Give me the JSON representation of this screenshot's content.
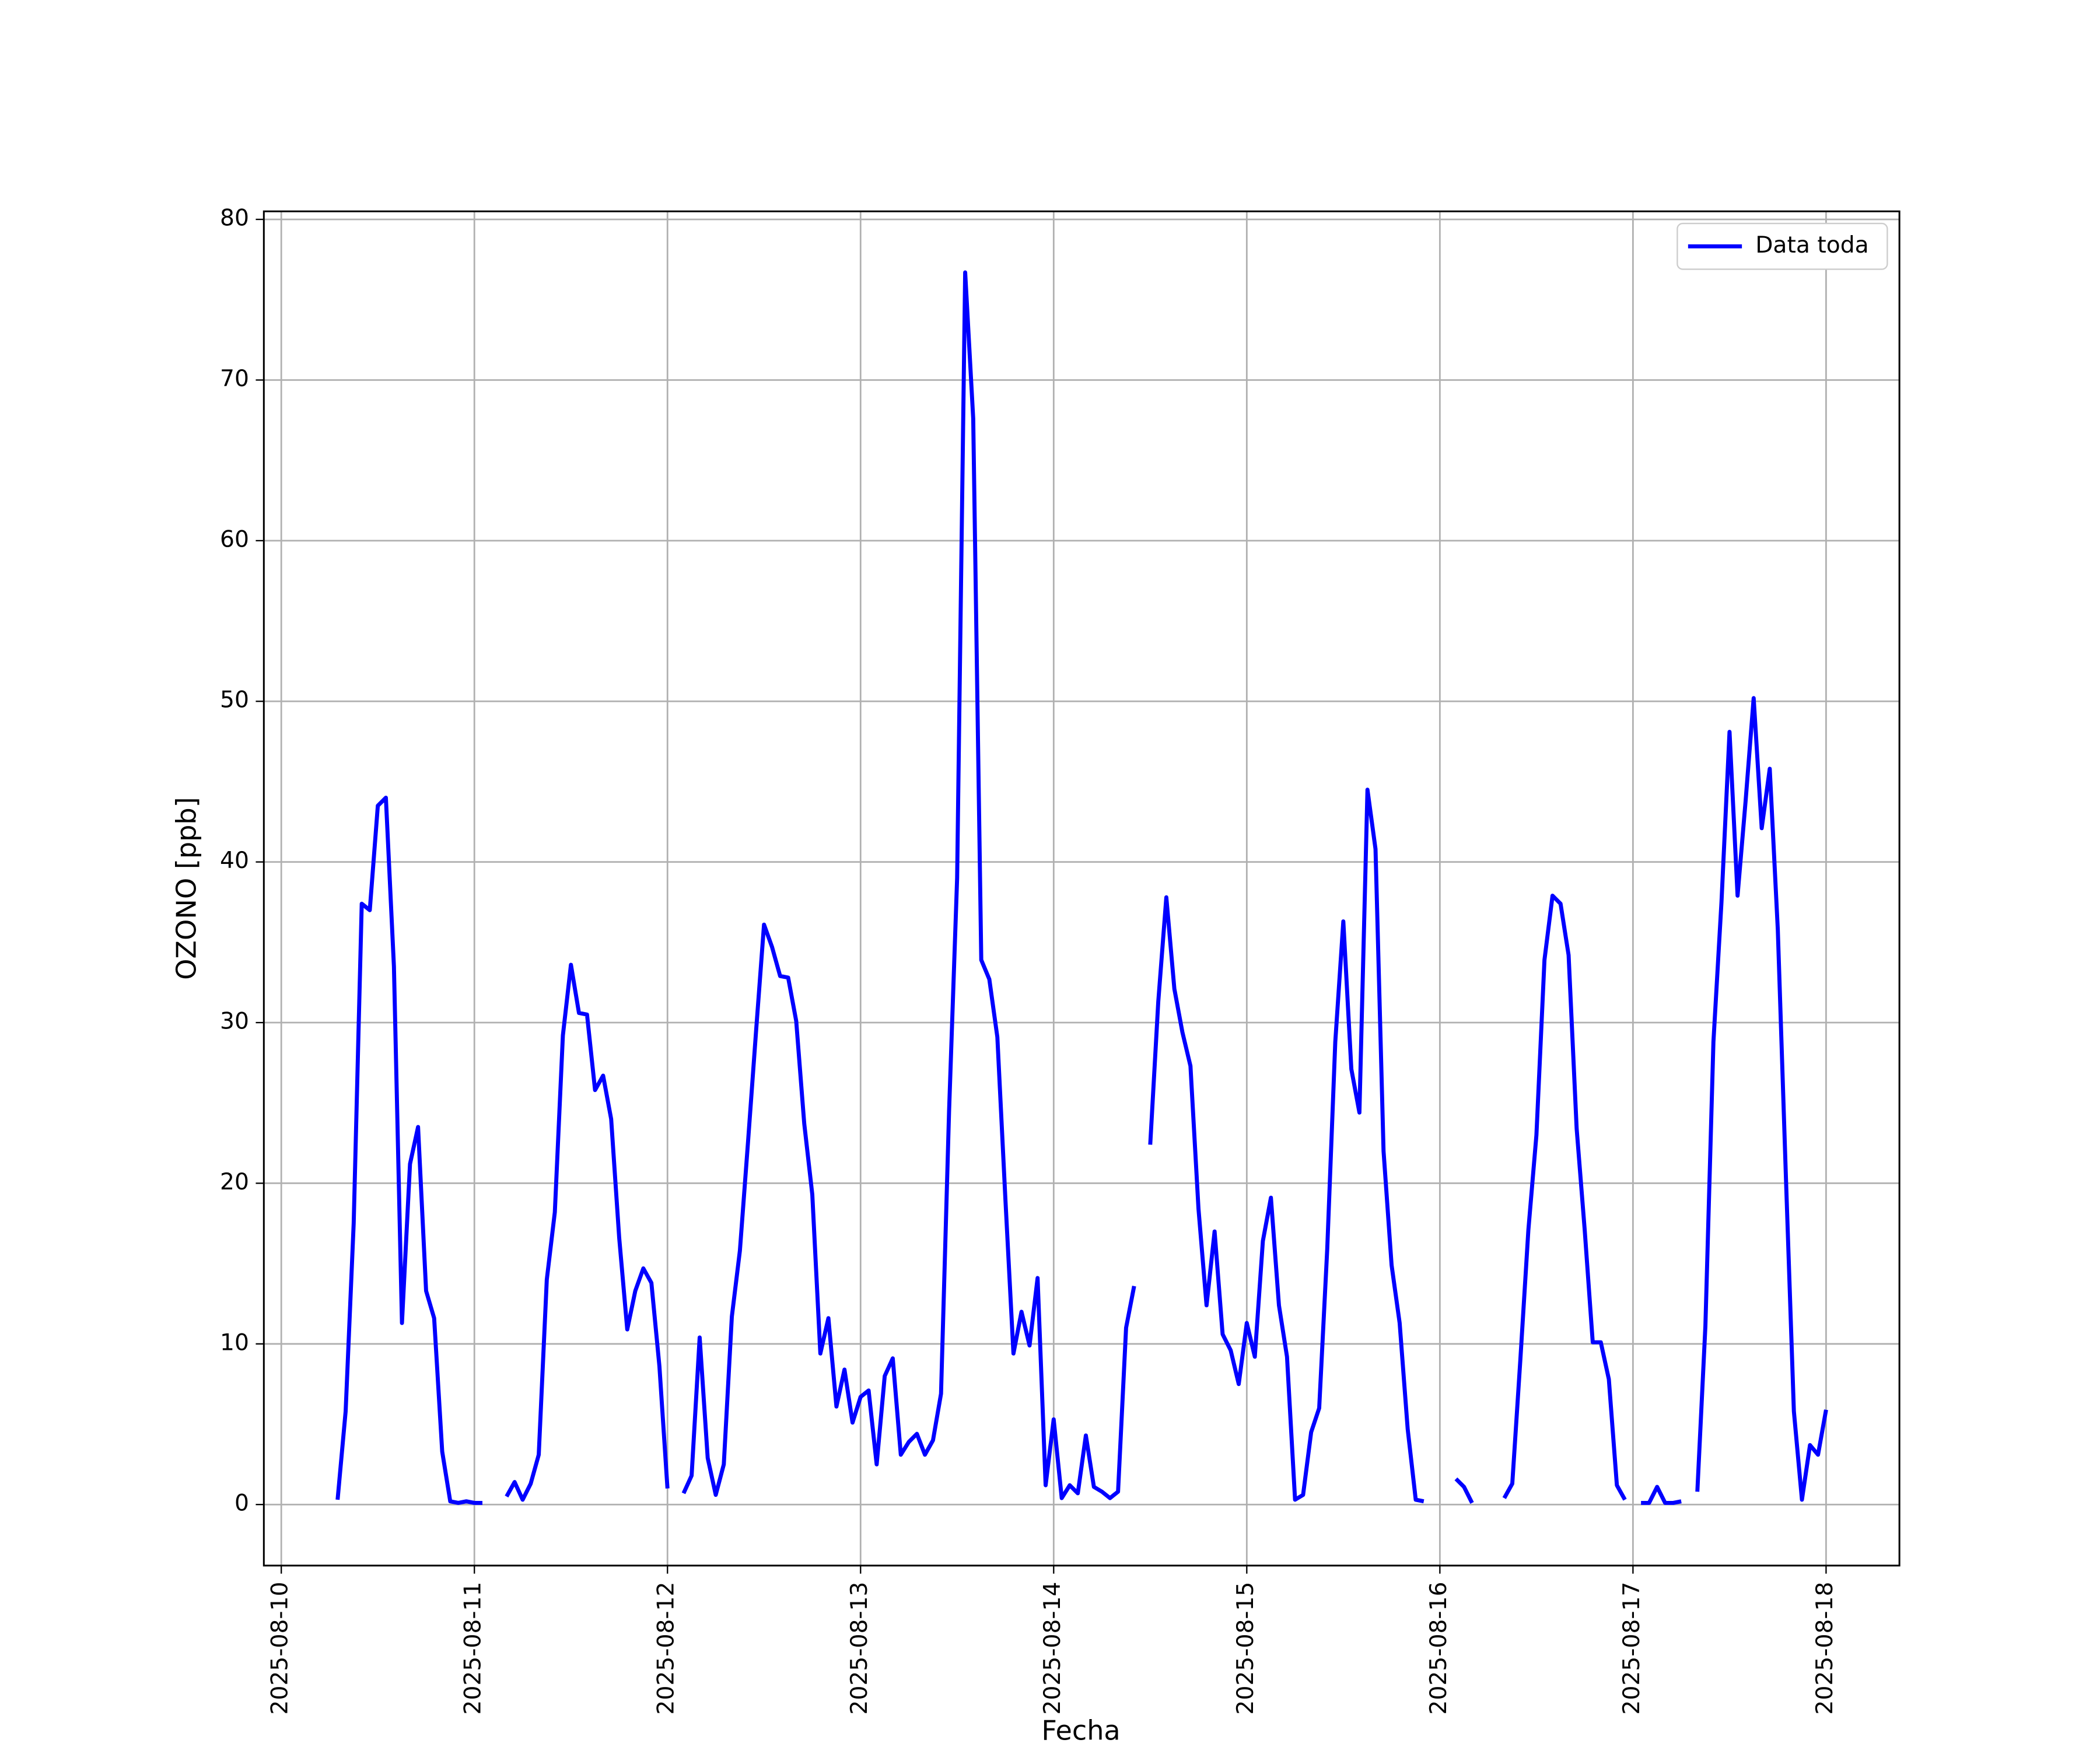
{
  "chart_data": {
    "type": "line",
    "xlabel": "Fecha",
    "ylabel": "OZONO [ppb]",
    "x": [
      "2025-08-10T07:00",
      "2025-08-10T08:00",
      "2025-08-10T09:00",
      "2025-08-10T10:00",
      "2025-08-10T11:00",
      "2025-08-10T12:00",
      "2025-08-10T13:00",
      "2025-08-10T14:00",
      "2025-08-10T15:00",
      "2025-08-10T16:00",
      "2025-08-10T17:00",
      "2025-08-10T18:00",
      "2025-08-10T19:00",
      "2025-08-10T20:00",
      "2025-08-10T21:00",
      "2025-08-10T22:00",
      "2025-08-10T23:00",
      "2025-08-11T00:00",
      "2025-08-11T01:00",
      "2025-08-11T02:00",
      "2025-08-11T03:00",
      "2025-08-11T04:00",
      "2025-08-11T05:00",
      "2025-08-11T06:00",
      "2025-08-11T07:00",
      "2025-08-11T08:00",
      "2025-08-11T09:00",
      "2025-08-11T10:00",
      "2025-08-11T11:00",
      "2025-08-11T12:00",
      "2025-08-11T13:00",
      "2025-08-11T14:00",
      "2025-08-11T15:00",
      "2025-08-11T16:00",
      "2025-08-11T17:00",
      "2025-08-11T18:00",
      "2025-08-11T19:00",
      "2025-08-11T20:00",
      "2025-08-11T21:00",
      "2025-08-11T22:00",
      "2025-08-11T23:00",
      "2025-08-12T00:00",
      "2025-08-12T01:00",
      "2025-08-12T02:00",
      "2025-08-12T03:00",
      "2025-08-12T04:00",
      "2025-08-12T05:00",
      "2025-08-12T06:00",
      "2025-08-12T07:00",
      "2025-08-12T08:00",
      "2025-08-12T09:00",
      "2025-08-12T10:00",
      "2025-08-12T11:00",
      "2025-08-12T12:00",
      "2025-08-12T13:00",
      "2025-08-12T14:00",
      "2025-08-12T15:00",
      "2025-08-12T16:00",
      "2025-08-12T17:00",
      "2025-08-12T18:00",
      "2025-08-12T19:00",
      "2025-08-12T20:00",
      "2025-08-12T21:00",
      "2025-08-12T22:00",
      "2025-08-12T23:00",
      "2025-08-13T00:00",
      "2025-08-13T01:00",
      "2025-08-13T02:00",
      "2025-08-13T03:00",
      "2025-08-13T04:00",
      "2025-08-13T05:00",
      "2025-08-13T06:00",
      "2025-08-13T07:00",
      "2025-08-13T08:00",
      "2025-08-13T09:00",
      "2025-08-13T10:00",
      "2025-08-13T11:00",
      "2025-08-13T12:00",
      "2025-08-13T13:00",
      "2025-08-13T14:00",
      "2025-08-13T15:00",
      "2025-08-13T16:00",
      "2025-08-13T17:00",
      "2025-08-13T18:00",
      "2025-08-13T19:00",
      "2025-08-13T20:00",
      "2025-08-13T21:00",
      "2025-08-13T22:00",
      "2025-08-13T23:00",
      "2025-08-14T00:00",
      "2025-08-14T01:00",
      "2025-08-14T02:00",
      "2025-08-14T03:00",
      "2025-08-14T04:00",
      "2025-08-14T05:00",
      "2025-08-14T06:00",
      "2025-08-14T07:00",
      "2025-08-14T08:00",
      "2025-08-14T09:00",
      "2025-08-14T10:00",
      "2025-08-14T11:00",
      "2025-08-14T12:00",
      "2025-08-14T13:00",
      "2025-08-14T14:00",
      "2025-08-14T15:00",
      "2025-08-14T16:00",
      "2025-08-14T17:00",
      "2025-08-14T18:00",
      "2025-08-14T19:00",
      "2025-08-14T20:00",
      "2025-08-14T21:00",
      "2025-08-14T22:00",
      "2025-08-14T23:00",
      "2025-08-15T00:00",
      "2025-08-15T01:00",
      "2025-08-15T02:00",
      "2025-08-15T03:00",
      "2025-08-15T04:00",
      "2025-08-15T05:00",
      "2025-08-15T06:00",
      "2025-08-15T07:00",
      "2025-08-15T08:00",
      "2025-08-15T09:00",
      "2025-08-15T10:00",
      "2025-08-15T11:00",
      "2025-08-15T12:00",
      "2025-08-15T13:00",
      "2025-08-15T14:00",
      "2025-08-15T15:00",
      "2025-08-15T16:00",
      "2025-08-15T17:00",
      "2025-08-15T18:00",
      "2025-08-15T19:00",
      "2025-08-15T20:00",
      "2025-08-15T21:00",
      "2025-08-15T22:00",
      "2025-08-15T23:00",
      "2025-08-16T00:00",
      "2025-08-16T01:00",
      "2025-08-16T02:00",
      "2025-08-16T03:00",
      "2025-08-16T04:00",
      "2025-08-16T05:00",
      "2025-08-16T06:00",
      "2025-08-16T07:00",
      "2025-08-16T08:00",
      "2025-08-16T09:00",
      "2025-08-16T10:00",
      "2025-08-16T11:00",
      "2025-08-16T12:00",
      "2025-08-16T13:00",
      "2025-08-16T14:00",
      "2025-08-16T15:00",
      "2025-08-16T16:00",
      "2025-08-16T17:00",
      "2025-08-16T18:00",
      "2025-08-16T19:00",
      "2025-08-16T20:00",
      "2025-08-16T21:00",
      "2025-08-16T22:00",
      "2025-08-16T23:00",
      "2025-08-17T00:00",
      "2025-08-17T01:00",
      "2025-08-17T02:00",
      "2025-08-17T03:00",
      "2025-08-17T04:00",
      "2025-08-17T05:00",
      "2025-08-17T06:00",
      "2025-08-17T07:00",
      "2025-08-17T08:00",
      "2025-08-17T09:00",
      "2025-08-17T10:00",
      "2025-08-17T11:00",
      "2025-08-17T12:00",
      "2025-08-17T13:00",
      "2025-08-17T14:00",
      "2025-08-17T15:00",
      "2025-08-17T16:00",
      "2025-08-17T17:00",
      "2025-08-17T18:00",
      "2025-08-17T19:00",
      "2025-08-17T20:00",
      "2025-08-17T21:00",
      "2025-08-17T22:00",
      "2025-08-17T23:00",
      "2025-08-18T00:00"
    ],
    "series": [
      {
        "name": "Data toda",
        "color": "#0000ff",
        "values": [
          0.3,
          5.8,
          17.5,
          37.4,
          37.0,
          43.5,
          44.0,
          33.5,
          11.3,
          21.2,
          23.5,
          13.3,
          11.6,
          3.3,
          0.2,
          0.1,
          0.2,
          0.1,
          0.1,
          null,
          null,
          0.5,
          1.4,
          0.3,
          1.3,
          3.1,
          14.0,
          18.2,
          29.2,
          33.6,
          30.6,
          30.5,
          25.8,
          26.7,
          24.0,
          16.6,
          10.9,
          13.3,
          14.7,
          13.8,
          8.6,
          1.0,
          null,
          0.7,
          1.8,
          10.4,
          2.9,
          0.6,
          2.5,
          11.7,
          15.8,
          22.5,
          29.4,
          36.1,
          34.7,
          32.9,
          32.8,
          30.1,
          23.7,
          19.3,
          9.4,
          11.6,
          6.1,
          8.4,
          5.1,
          6.7,
          7.1,
          2.5,
          8.0,
          9.1,
          3.1,
          3.9,
          4.4,
          3.1,
          4.0,
          6.9,
          24.5,
          39.0,
          76.7,
          67.6,
          33.9,
          32.7,
          29.1,
          19.0,
          9.4,
          12.0,
          9.9,
          14.1,
          1.2,
          5.3,
          0.4,
          1.2,
          0.7,
          4.3,
          1.1,
          0.8,
          0.4,
          0.8,
          11.0,
          13.6,
          null,
          22.4,
          31.3,
          37.8,
          32.1,
          29.4,
          27.3,
          18.4,
          12.4,
          17.0,
          10.6,
          9.6,
          7.5,
          11.3,
          9.2,
          16.4,
          19.1,
          12.4,
          9.2,
          0.3,
          0.6,
          4.5,
          6.0,
          15.9,
          28.8,
          36.3,
          27.1,
          24.4,
          44.5,
          40.8,
          22.0,
          14.9,
          11.3,
          4.7,
          0.3,
          0.2,
          null,
          null,
          null,
          1.6,
          1.1,
          0.1,
          null,
          null,
          null,
          0.4,
          1.3,
          9.0,
          17.1,
          23.0,
          33.9,
          37.9,
          37.4,
          34.2,
          23.4,
          17.1,
          10.1,
          10.1,
          7.8,
          1.2,
          0.3,
          null,
          0.1,
          0.1,
          1.1,
          0.1,
          0.1,
          0.2,
          null,
          0.8,
          11.1,
          28.8,
          37.5,
          48.1,
          37.9,
          43.8,
          50.2,
          42.1,
          45.8,
          35.8,
          20.5,
          5.8,
          0.3,
          3.7,
          3.1,
          5.9
        ]
      }
    ],
    "xlim": [
      "2025-08-09T21:50",
      "2025-08-18T09:07"
    ],
    "xticks": [
      "2025-08-10",
      "2025-08-11",
      "2025-08-12",
      "2025-08-13",
      "2025-08-14",
      "2025-08-15",
      "2025-08-16",
      "2025-08-17",
      "2025-08-18"
    ],
    "ylim": [
      -3.8,
      80.5
    ],
    "yticks": [
      0,
      10,
      20,
      30,
      40,
      50,
      60,
      70,
      80
    ],
    "grid": true,
    "legend": "upper right"
  }
}
